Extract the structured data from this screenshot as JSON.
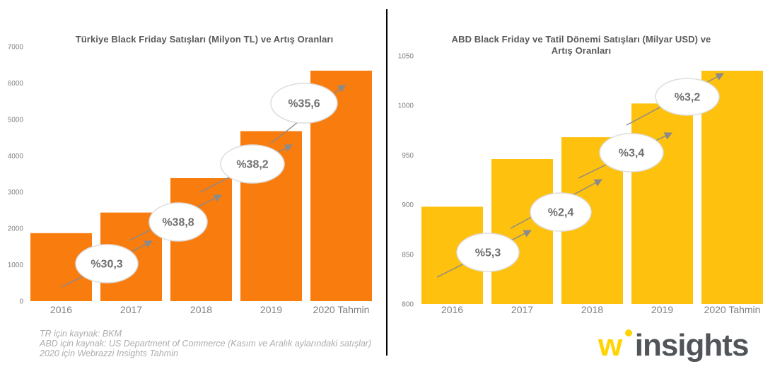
{
  "chart_data": [
    {
      "type": "bar",
      "title": "Türkiye Black Friday Satışları (Milyon TL) ve Artış Oranları",
      "title_lines": [
        "Türkiye Black Friday Satışları (Milyon TL) ve Artış Oranları"
      ],
      "categories": [
        "2016",
        "2017",
        "2018",
        "2019",
        "2020 Tahmin"
      ],
      "values": [
        1870,
        2437,
        3383,
        4676,
        6340
      ],
      "unit": "Milyon TL",
      "xlabel": "",
      "ylabel": "",
      "ylim": [
        0,
        7000
      ],
      "yticks": [
        0,
        1000,
        2000,
        3000,
        4000,
        5000,
        6000,
        7000
      ],
      "grid": false,
      "legend": "none",
      "bar_color": "#F97C0E",
      "annotations": [
        {
          "label": "%30,3",
          "between": [
            "2016",
            "2017"
          ]
        },
        {
          "label": "%38,8",
          "between": [
            "2017",
            "2018"
          ]
        },
        {
          "label": "%38,2",
          "between": [
            "2018",
            "2019"
          ]
        },
        {
          "label": "%35,6",
          "between": [
            "2019",
            "2020 Tahmin"
          ]
        }
      ]
    },
    {
      "type": "bar",
      "title": "ABD Black Friday ve Tatil Dönemi Satışları (Milyar USD) ve Artış Oranları",
      "title_lines": [
        "ABD Black Friday ve Tatil Dönemi Satışları (Milyar USD) ve",
        "Artış Oranları"
      ],
      "categories": [
        "2016",
        "2017",
        "2018",
        "2019",
        "2020 Tahmin"
      ],
      "values": [
        898,
        946,
        968,
        1002,
        1035
      ],
      "unit": "Milyar USD",
      "xlabel": "",
      "ylabel": "",
      "ylim": [
        800,
        1050
      ],
      "yticks": [
        800,
        850,
        900,
        950,
        1000,
        1050
      ],
      "grid": false,
      "legend": "none",
      "bar_color": "#FEC10D",
      "annotations": [
        {
          "label": "%5,3",
          "between": [
            "2016",
            "2017"
          ]
        },
        {
          "label": "%2,4",
          "between": [
            "2017",
            "2018"
          ]
        },
        {
          "label": "%3,4",
          "between": [
            "2018",
            "2019"
          ]
        },
        {
          "label": "%3,2",
          "between": [
            "2019",
            "2020 Tahmin"
          ]
        }
      ]
    }
  ],
  "footnotes": {
    "lines": [
      "TR için kaynak: BKM",
      "ABD için kaynak: US Department of Commerce (Kasım ve Aralık aylarındaki satışlar)",
      "2020 için Webrazzi Insights Tahmin"
    ]
  },
  "logo": {
    "w": "w",
    "text": "insights",
    "w_color": "#FFD400",
    "dot_color": "#FFD400",
    "text_color": "#515559"
  }
}
